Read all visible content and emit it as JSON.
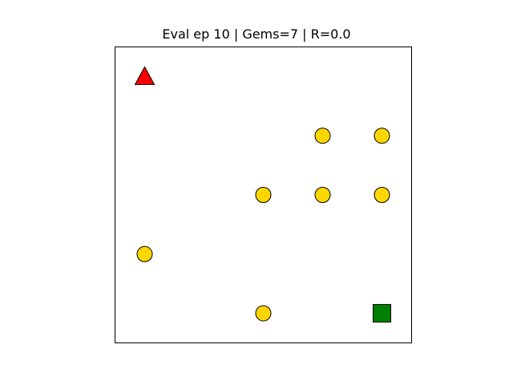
{
  "title": "Eval ep 10 | Gems=7 | R=0.0",
  "grid": {
    "cols": 5,
    "rows": 5
  },
  "agent": {
    "icon": "triangle-agent-icon",
    "col": 0,
    "row": 0,
    "color": "#ff0000"
  },
  "goal": {
    "icon": "square-goal-icon",
    "col": 4,
    "row": 4,
    "color": "#008000"
  },
  "gem_style": {
    "icon": "circle-gem-icon",
    "color": "#ffd700"
  },
  "gems": [
    {
      "col": 3,
      "row": 1
    },
    {
      "col": 4,
      "row": 1
    },
    {
      "col": 2,
      "row": 2
    },
    {
      "col": 3,
      "row": 2
    },
    {
      "col": 4,
      "row": 2
    },
    {
      "col": 0,
      "row": 3
    },
    {
      "col": 2,
      "row": 4
    }
  ]
}
